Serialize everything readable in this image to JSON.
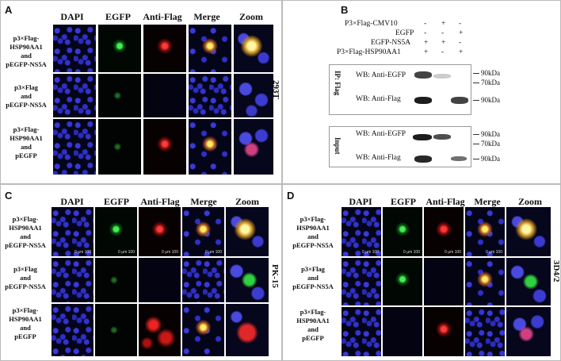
{
  "panel_a": {
    "label": "A",
    "columns": [
      "DAPI",
      "EGFP",
      "Anti-Flag",
      "Merge",
      "Zoom"
    ],
    "rows": [
      [
        "p3×Flag-",
        "HSP90AA1",
        "and",
        "pEGFP-NS5A"
      ],
      [
        "p3×Flag",
        "and",
        "pEGFP-NS5A"
      ],
      [
        "p3×Flag-",
        "HSP90AA1",
        "and",
        "pEGFP"
      ]
    ],
    "cell_line": "293T"
  },
  "panel_b": {
    "label": "B",
    "conditions": [
      {
        "name": "P3×Flag-CMV10",
        "signs": [
          "-",
          "+",
          "-"
        ]
      },
      {
        "name": "EGFP",
        "signs": [
          "-",
          "-",
          "+"
        ]
      },
      {
        "name": "EGFP-NS5A",
        "signs": [
          "+",
          "+",
          "-"
        ]
      },
      {
        "name": "P3×Flag-HSP90AA1",
        "signs": [
          "+",
          "-",
          "+"
        ]
      }
    ],
    "ip_label": "IP: Flag",
    "input_label": "Input",
    "blots": [
      {
        "label": "WB: Anti-EGFP",
        "markers": [
          "90kDa",
          "70kDa"
        ],
        "bands": [
          0.85,
          0.3,
          0
        ]
      },
      {
        "label": "WB: Anti-Flag",
        "markers": [
          "90kDa"
        ],
        "bands": [
          0.95,
          0,
          0.85
        ]
      },
      {
        "label": "WB: Anti-EGFP",
        "markers": [
          "90kDa",
          "70kDa"
        ],
        "bands": [
          0.95,
          0.8,
          0
        ]
      },
      {
        "label": "WB: Anti-Flag",
        "markers": [
          "90kDa"
        ],
        "bands": [
          0.9,
          0,
          0.7
        ]
      }
    ]
  },
  "panel_c": {
    "label": "C",
    "columns": [
      "DAPI",
      "EGFP",
      "Anti-Flag",
      "Merge",
      "Zoom"
    ],
    "rows": [
      [
        "p3×Flag-",
        "HSP90AA1",
        "and",
        "pEGFP-NS5A"
      ],
      [
        "p3×Flag",
        "and",
        "pEGFP-NS5A"
      ],
      [
        "p3×Flag-",
        "HSP90AA1",
        "and",
        "pEGFP"
      ]
    ],
    "cell_line": "PK-15",
    "scale": "0   μm   100"
  },
  "panel_d": {
    "label": "D",
    "columns": [
      "DAPI",
      "EGFP",
      "Anti-Flag",
      "Merge",
      "Zoom"
    ],
    "rows": [
      [
        "p3×Flag-",
        "HSP90AA1",
        "and",
        "pEGFP-NS5A"
      ],
      [
        "p3×Flag",
        "and",
        "pEGFP-NS5A"
      ],
      [
        "p3×Flag-",
        "HSP90AA1",
        "and",
        "pEGFP"
      ]
    ],
    "cell_line": "3D4/2",
    "scale": "0   μm   100"
  }
}
